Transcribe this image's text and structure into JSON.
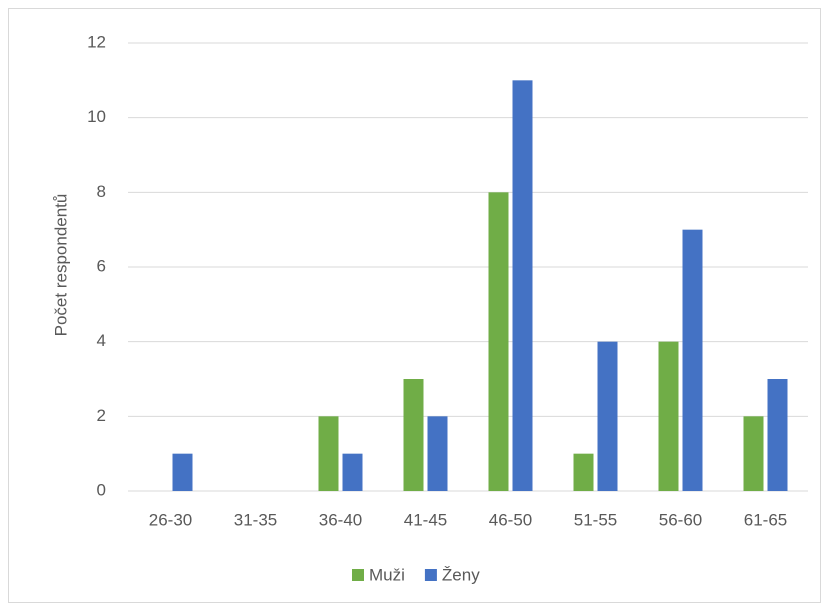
{
  "chart_data": {
    "type": "bar",
    "y_axis_label": "Počet respondentů",
    "categories": [
      "26-30",
      "31-35",
      "36-40",
      "41-45",
      "46-50",
      "51-55",
      "56-60",
      "61-65"
    ],
    "series": [
      {
        "name": "Muži",
        "color": "#70ad47",
        "values": [
          0,
          0,
          2,
          3,
          8,
          1,
          4,
          2
        ]
      },
      {
        "name": "Ženy",
        "color": "#4472c4",
        "values": [
          1,
          0,
          1,
          2,
          11,
          4,
          7,
          3
        ]
      }
    ],
    "ylim": [
      0,
      12
    ],
    "yticks": [
      0,
      2,
      4,
      6,
      8,
      10,
      12
    ],
    "grid": true,
    "legend": "bottom"
  }
}
